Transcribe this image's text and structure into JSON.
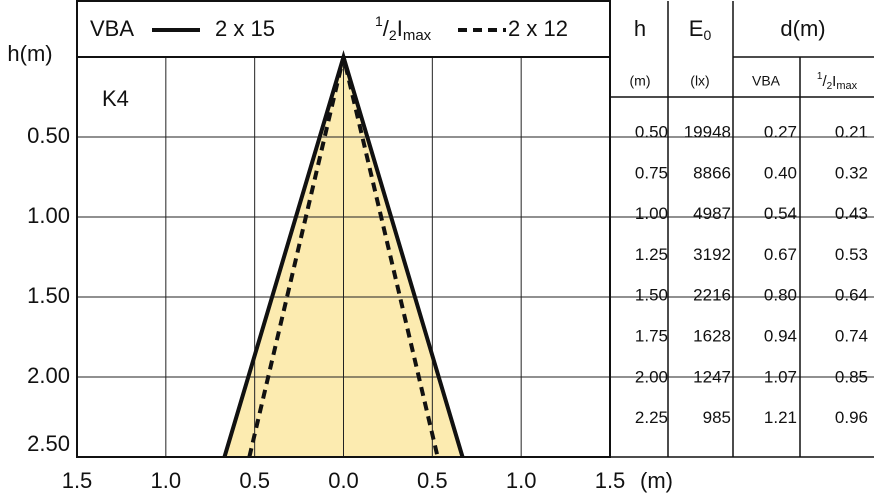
{
  "chart_data": {
    "type": "line",
    "y_title": "h(m)",
    "x_unit": "(m)",
    "annotation": "K4",
    "xlim": [
      -1.5,
      1.5
    ],
    "xticks": [
      {
        "value": -1.5,
        "label": "1.5"
      },
      {
        "value": -1.0,
        "label": "1.0"
      },
      {
        "value": -0.5,
        "label": "0.5"
      },
      {
        "value": 0,
        "label": "0.0"
      },
      {
        "value": 0.5,
        "label": "0.5"
      },
      {
        "value": 1.0,
        "label": "1.0"
      },
      {
        "value": 1.5,
        "label": "1.5"
      }
    ],
    "ylim": [
      0,
      2.5
    ],
    "yticks": [
      {
        "value": 0.5,
        "label": "0.50"
      },
      {
        "value": 1,
        "label": "1.00"
      },
      {
        "value": 1.5,
        "label": "1.50"
      },
      {
        "value": 2,
        "label": "2.00"
      },
      {
        "value": 2.5,
        "label": "2.50"
      }
    ],
    "y_inverted": true,
    "grid": true,
    "series": [
      {
        "name": "VBA",
        "label": "2 x 15",
        "color": "#111111",
        "style": "solid",
        "fill": "#fcebb0",
        "x": [
          -0.67,
          0,
          0.67
        ],
        "values": [
          2.5,
          0,
          2.5
        ]
      },
      {
        "name": {
          "num": "1",
          "den": "2",
          "main": "I",
          "sub": "max"
        },
        "label": "2 x 12",
        "color": "#111111",
        "style": "dashed",
        "x": [
          -0.53,
          0,
          0.53
        ],
        "values": [
          2.5,
          0,
          2.5
        ]
      }
    ]
  },
  "table": {
    "header": {
      "h": "h",
      "e_main": "E",
      "e_sub": "0",
      "d": "d(m)",
      "h_unit": "(m)",
      "e_unit": "(lx)",
      "vba": "VBA",
      "imax": {
        "num": "1",
        "den": "2",
        "main": "I",
        "sub": "max"
      }
    },
    "rows": [
      [
        "0.50",
        "19948",
        "0.27",
        "0.21"
      ],
      [
        "0.75",
        "8866",
        "0.40",
        "0.32"
      ],
      [
        "1.00",
        "4987",
        "0.54",
        "0.43"
      ],
      [
        "1.25",
        "3192",
        "0.67",
        "0.53"
      ],
      [
        "1.50",
        "2216",
        "0.80",
        "0.64"
      ],
      [
        "1.75",
        "1628",
        "0.94",
        "0.74"
      ],
      [
        "2.00",
        "1247",
        "1.07",
        "0.85"
      ],
      [
        "2.25",
        "985",
        "1.21",
        "0.96"
      ]
    ]
  }
}
